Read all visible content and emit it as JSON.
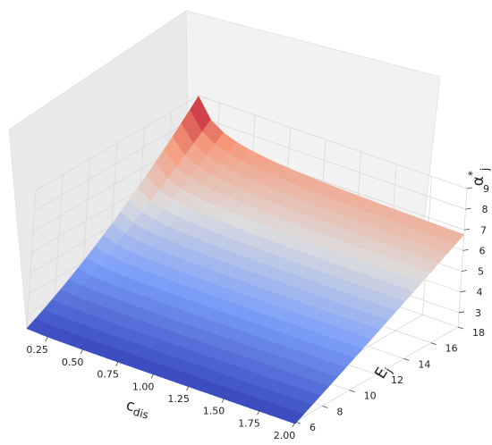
{
  "chart_data": {
    "type": "surface3d",
    "title": "",
    "x_axis": {
      "label": "c",
      "label_sub": "dis",
      "range": [
        0.1,
        2.0
      ],
      "ticks": [
        "0.25",
        "0.50",
        "0.75",
        "1.00",
        "1.25",
        "1.50",
        "1.75",
        "2.00"
      ]
    },
    "y_axis": {
      "label": "E",
      "label_sub": "j",
      "range": [
        6,
        18
      ],
      "ticks": [
        "6",
        "8",
        "10",
        "12",
        "14",
        "16",
        "18"
      ]
    },
    "z_axis": {
      "label": "α",
      "label_sup": "*",
      "label_sub": "j",
      "range": [
        2.3,
        9.0
      ],
      "ticks": [
        "3",
        "4",
        "5",
        "6",
        "7",
        "8",
        "9"
      ]
    },
    "grid": true,
    "colormap": "coolwarm",
    "surface_corners": [
      {
        "c_dis": 0.1,
        "E_j": 6,
        "alpha": 2.3
      },
      {
        "c_dis": 2.0,
        "E_j": 6,
        "alpha": 2.2
      },
      {
        "c_dis": 0.1,
        "E_j": 18,
        "alpha": 9.0
      },
      {
        "c_dis": 2.0,
        "E_j": 18,
        "alpha": 6.6
      }
    ]
  }
}
